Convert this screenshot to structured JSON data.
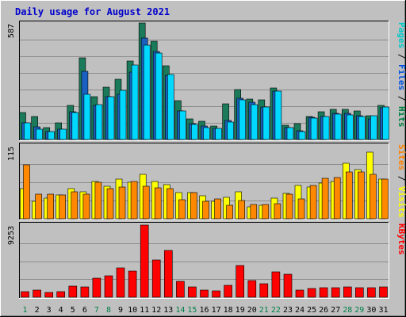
{
  "chart_data": {
    "type": "bar",
    "title": "Daily usage for August 2021",
    "categories": [
      "1",
      "2",
      "3",
      "4",
      "5",
      "6",
      "7",
      "8",
      "9",
      "10",
      "11",
      "12",
      "13",
      "14",
      "15",
      "16",
      "17",
      "18",
      "19",
      "20",
      "21",
      "22",
      "23",
      "24",
      "25",
      "26",
      "27",
      "28",
      "29",
      "30",
      "31"
    ],
    "weekend_days": [
      "1",
      "7",
      "8",
      "14",
      "15",
      "21",
      "22",
      "28",
      "29"
    ],
    "panels": [
      {
        "id": "top",
        "ymax": 587,
        "ymax_label": "587",
        "ylabels": [
          {
            "text": "Pages",
            "color": "#00c8c8"
          },
          {
            "text": " / ",
            "color": "#000000"
          },
          {
            "text": "Files",
            "color": "#0050e0"
          },
          {
            "text": " / ",
            "color": "#000000"
          },
          {
            "text": "Hits",
            "color": "#008040"
          }
        ],
        "series": [
          {
            "name": "Hits",
            "color": "#1a7a5a",
            "values": [
              136,
              114,
              60,
              85,
              173,
              411,
              216,
              262,
              302,
              397,
              587,
              497,
              372,
              196,
              103,
              90,
              67,
              180,
              250,
              205,
              200,
              261,
              71,
              79,
              116,
              139,
              150,
              150,
              143,
              121,
              171
            ]
          },
          {
            "name": "Files",
            "color": "#1a60c0",
            "values": [
              83,
              63,
              41,
              52,
              139,
              344,
              172,
              214,
              229,
              341,
              510,
              445,
              325,
              145,
              78,
              69,
              57,
              96,
              207,
              186,
              163,
              242,
              60,
              43,
              111,
              116,
              131,
              130,
              121,
              103,
              160
            ]
          },
          {
            "name": "Pages",
            "color": "#00d8ff",
            "values": [
              83,
              50,
              38,
              51,
              136,
              226,
              177,
              215,
              246,
              376,
              476,
              435,
              329,
              145,
              77,
              58,
              55,
              88,
              200,
              176,
              163,
              242,
              60,
              41,
              108,
              114,
              127,
              122,
              115,
              118,
              162
            ]
          }
        ]
      },
      {
        "id": "middle",
        "ymax": 115,
        "ymax_label": "115",
        "ylabels": [
          {
            "text": "Sites",
            "color": "#ff8000"
          },
          {
            "text": " / ",
            "color": "#000000"
          },
          {
            "text": "Visits",
            "color": "#ffff00"
          }
        ],
        "series": [
          {
            "name": "Visits",
            "color": "#ffff00",
            "values": [
              47,
              27,
              33,
              38,
              47,
              42,
              59,
              51,
              63,
              57,
              70,
              59,
              54,
              41,
              41,
              36,
              27,
              34,
              42,
              19,
              21,
              33,
              40,
              53,
              50,
              56,
              59,
              87,
              78,
              105,
              63
            ]
          },
          {
            "name": "Sites",
            "color": "#ff8800",
            "values": [
              85,
              39,
              39,
              37,
              42,
              39,
              57,
              48,
              50,
              59,
              51,
              49,
              47,
              30,
              41,
              28,
              31,
              21,
              29,
              22,
              23,
              24,
              39,
              31,
              52,
              64,
              65,
              74,
              74,
              70,
              62
            ]
          }
        ]
      },
      {
        "id": "bottom",
        "ymax": 9253,
        "ymax_label": "9253",
        "ylabels": [
          {
            "text": "KBytes",
            "color": "#ff0000"
          }
        ],
        "series": [
          {
            "name": "KBytes",
            "color": "#ff0000",
            "values": [
              756,
              920,
              561,
              737,
              1401,
              1309,
              2451,
              2759,
              3745,
              3311,
              9253,
              4751,
              6027,
              2005,
              1292,
              939,
              852,
              1484,
              4042,
              2169,
              1688,
              3297,
              2976,
              919,
              1070,
              1231,
              1264,
              1333,
              1223,
              1171,
              1280
            ]
          }
        ]
      }
    ],
    "grid": true,
    "legend": "right-vertical"
  }
}
